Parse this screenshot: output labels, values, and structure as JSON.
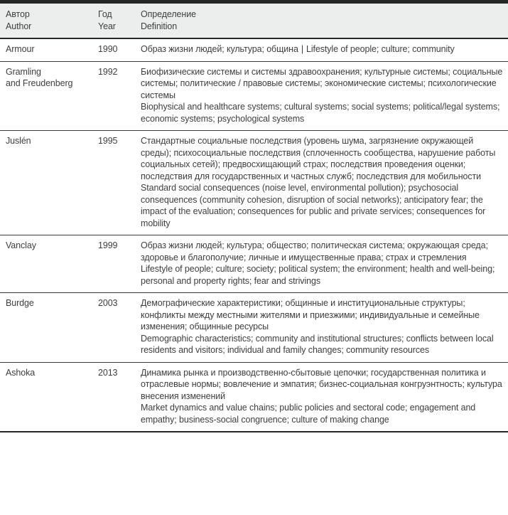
{
  "colors": {
    "header_bg": "#ECEDED",
    "border_dark": "#262626",
    "text": "#3E3E3E"
  },
  "table": {
    "columns": [
      {
        "ru": "Автор",
        "en": "Author"
      },
      {
        "ru": "Год",
        "en": "Year"
      },
      {
        "ru": "Определение",
        "en": "Definition"
      }
    ],
    "rows": [
      {
        "author": "Armour",
        "year": "1990",
        "definition_ru": "Образ жизни людей; культура; община",
        "separator": "|",
        "definition_en": "Lifestyle of people; culture; community"
      },
      {
        "author": "Gramling",
        "author_line2": "and Freudenberg",
        "year": "1992",
        "definition_ru": "Биофизические системы и системы здравоохранения; культурные системы; социальные системы; политические / правовые системы; экономические системы; психологические системы",
        "definition_en": "Biophysical and healthcare systems; cultural systems; social systems; political/legal systems; economic systems; psychological systems"
      },
      {
        "author": "Juslén",
        "year": "1995",
        "definition_ru": "Стандартные социальные последствия (уровень шума, загрязнение окружающей среды); психосоциальные последствия (сплоченность сообщества, нарушение работы социальных сетей); предвосхищающий страх; последствия проведения оценки; последствия для государственных и частных служб; последствия для мобильности",
        "definition_en": "Standard social consequences (noise level, environmental pollution); psychosocial consequences (community cohesion, disruption of social networks); anticipatory fear; the impact of the evaluation; consequences for public and private services; consequences for mobility"
      },
      {
        "author": "Vanclay",
        "year": "1999",
        "definition_ru": "Образ жизни людей; культура; общество; политическая система; окружающая среда; здоровье и благополучие; личные и имущественные права; страх и стремления",
        "definition_en": "Lifestyle of people; culture; society; political system; the environment; health and well-being; personal and property rights; fear and strivings"
      },
      {
        "author": "Burdge",
        "year": "2003",
        "definition_ru": "Демографические характеристики; общинные и институциональные структуры; конфликты между местными жителями и приезжими; индивидуальные и семейные изменения; общинные ресурсы",
        "definition_en": "Demographic characteristics; community and institutional structures; conflicts between local residents and visitors; individual and family changes; community resources"
      },
      {
        "author": "Ashoka",
        "year": "2013",
        "definition_ru": "Динамика рынка и производственно-сбытовые цепочки; государственная политика и отраслевые нормы; вовлечение и эмпатия; бизнес-социальная конгруэнтность; культура внесения изменений",
        "definition_en": "Market dynamics and value chains; public policies and sectoral code; engagement and empathy; business-social congruence; culture of making change"
      }
    ]
  }
}
